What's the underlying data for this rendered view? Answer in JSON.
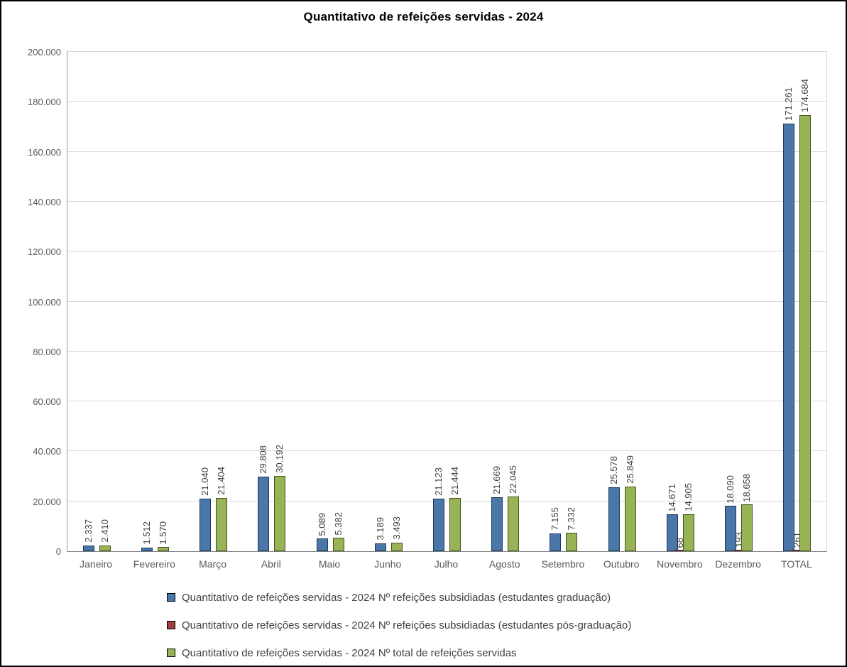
{
  "title": "Quantitativo de refeições servidas - 2024",
  "chart_data": {
    "type": "bar",
    "title": "Quantitativo de refeições servidas - 2024",
    "categories": [
      "Janeiro",
      "Fevereiro",
      "Março",
      "Abril",
      "Maio",
      "Junho",
      "Julho",
      "Agosto",
      "Setembro",
      "Outubro",
      "Novembro",
      "Dezembro",
      "TOTAL"
    ],
    "series": [
      {
        "name": "Quantitativo de refeições servidas - 2024 Nº refeições subsidiadas (estudantes graduação)",
        "color": "#4a76a8",
        "border": "#1c3a5c",
        "values": [
          2337,
          1512,
          21040,
          29808,
          5089,
          3189,
          21123,
          21669,
          7155,
          25578,
          14671,
          18090,
          171261
        ],
        "labels": [
          "2.337",
          "1.512",
          "21.040",
          "29.808",
          "5.089",
          "3.189",
          "21.123",
          "21.669",
          "7.155",
          "25.578",
          "14.671",
          "18.090",
          "171.261"
        ]
      },
      {
        "name": "Quantitativo de refeições servidas - 2024 Nº refeições subsidiadas (estudantes pós-graduação)",
        "color": "#9c4039",
        "border": "#632523",
        "values": [
          0,
          0,
          0,
          0,
          0,
          0,
          0,
          0,
          0,
          0,
          68,
          193,
          261
        ],
        "labels": [
          "",
          "",
          "",
          "",
          "",
          "",
          "",
          "",
          "",
          "",
          "68",
          "193",
          "261"
        ]
      },
      {
        "name": "Quantitativo de refeições servidas - 2024 Nº total de refeições servidas",
        "color": "#98b356",
        "border": "#46531f",
        "values": [
          2410,
          1570,
          21404,
          30192,
          5382,
          3493,
          21444,
          22045,
          7332,
          25849,
          14905,
          18658,
          174684
        ],
        "labels": [
          "2.410",
          "1.570",
          "21.404",
          "30.192",
          "5.382",
          "3.493",
          "21.444",
          "22.045",
          "7.332",
          "25.849",
          "14.905",
          "18.658",
          "174.684"
        ]
      }
    ],
    "ylim": [
      0,
      200000
    ],
    "ytick_step": 20000,
    "ytick_labels": [
      "0",
      "20.000",
      "40.000",
      "60.000",
      "80.000",
      "100.000",
      "120.000",
      "140.000",
      "160.000",
      "180.000",
      "200.000"
    ],
    "grid": true,
    "legend_position": "bottom"
  }
}
